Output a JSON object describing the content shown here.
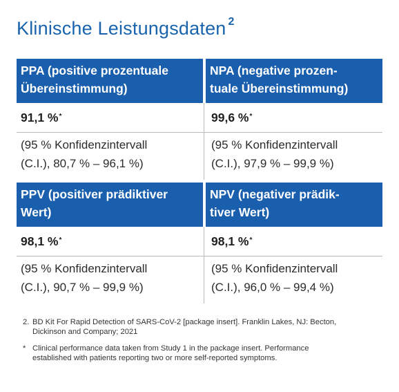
{
  "title": {
    "text": "Klinische Leistungsdaten",
    "ref": "2"
  },
  "blocks": [
    {
      "left": {
        "header_line1": "PPA (positive prozentuale",
        "header_line2": "Übereinstimmung)",
        "value": "91,1 %",
        "value_mark": "*",
        "ci_line1": "(95 % Konfidenzintervall",
        "ci_line2": "(C.I.), 80,7 % – 96,1 %)"
      },
      "right": {
        "header_line1": "NPA (negative prozen-",
        "header_line2": "tuale Übereinstimmung)",
        "value": "99,6 %",
        "value_mark": "*",
        "ci_line1": "(95 % Konfidenzintervall",
        "ci_line2": "(C.I.), 97,9 % – 99,9 %)"
      }
    },
    {
      "left": {
        "header_line1": "PPV (positiver prädiktiver",
        "header_line2": "Wert)",
        "value": "98,1 %",
        "value_mark": "*",
        "ci_line1": "(95 % Konfidenzintervall",
        "ci_line2": "(C.I.), 90,7 % – 99,9 %)"
      },
      "right": {
        "header_line1": "NPV (negativer prädik-",
        "header_line2": "tiver Wert)",
        "value": "98,1 %",
        "value_mark": "*",
        "ci_line1": "(95 % Konfidenzintervall",
        "ci_line2": "(C.I.), 96,0 % – 99,4 %)"
      }
    }
  ],
  "footnotes": [
    {
      "mark": "2.",
      "line1": "BD Kit For Rapid Detection of SARS-CoV-2 [package insert]. Franklin Lakes, NJ: Becton,",
      "line2": "Dickinson and Company; 2021"
    },
    {
      "mark": "*",
      "line1": "Clinical performance data taken from Study 1 in the package insert. Performance",
      "line2": "established with patients reporting two or more self-reported symptoms."
    }
  ],
  "colors": {
    "accent": "#1a5fae",
    "title": "#1a63ad",
    "divider": "#b9b9b9"
  }
}
